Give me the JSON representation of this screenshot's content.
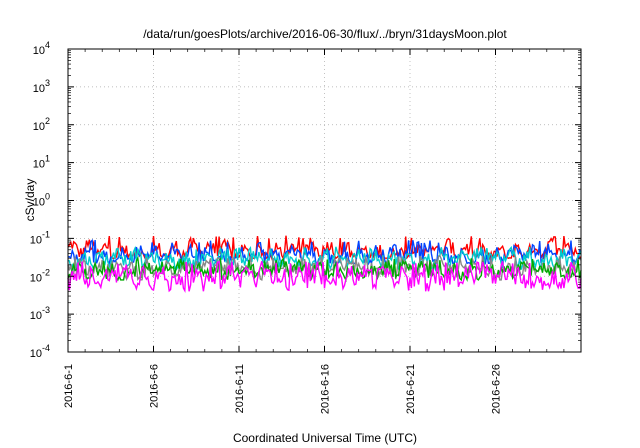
{
  "chart_data": {
    "type": "line",
    "title": "/data/run/goesPlots/archive/2016-06-30/flux/../bryn/31daysMoon.plot",
    "xlabel": "Coordinated Universal Time (UTC)",
    "ylabel": "cSv/day",
    "yscale": "log",
    "ylim": [
      0.0001,
      10000
    ],
    "y_ticks": [
      {
        "base": "10",
        "exp": "4"
      },
      {
        "base": "10",
        "exp": "3"
      },
      {
        "base": "10",
        "exp": "2"
      },
      {
        "base": "10",
        "exp": "1"
      },
      {
        "base": "10",
        "exp": "0"
      },
      {
        "base": "10",
        "exp": "-1"
      },
      {
        "base": "10",
        "exp": "-2"
      },
      {
        "base": "10",
        "exp": "-3"
      },
      {
        "base": "10",
        "exp": "-4"
      }
    ],
    "x_days": [
      1,
      31
    ],
    "x_ticks": [
      "2016-6-1",
      "2016-6-6",
      "2016-6-11",
      "2016-6-16",
      "2016-6-21",
      "2016-6-26"
    ],
    "x_tick_days": [
      1,
      6,
      11,
      16,
      21,
      26
    ],
    "grid": true,
    "series": [
      {
        "name": "red",
        "color": "#ff0000",
        "typical": 0.045,
        "min": 0.03,
        "max": 0.12
      },
      {
        "name": "blue",
        "color": "#0044ff",
        "typical": 0.035,
        "min": 0.022,
        "max": 0.09
      },
      {
        "name": "cyan",
        "color": "#00cccc",
        "typical": 0.028,
        "min": 0.015,
        "max": 0.06
      },
      {
        "name": "gray",
        "color": "#888888",
        "typical": 0.016,
        "min": 0.008,
        "max": 0.035
      },
      {
        "name": "green",
        "color": "#00aa00",
        "typical": 0.014,
        "min": 0.008,
        "max": 0.03
      },
      {
        "name": "magenta",
        "color": "#ff00ff",
        "typical": 0.009,
        "min": 0.004,
        "max": 0.025
      }
    ]
  }
}
